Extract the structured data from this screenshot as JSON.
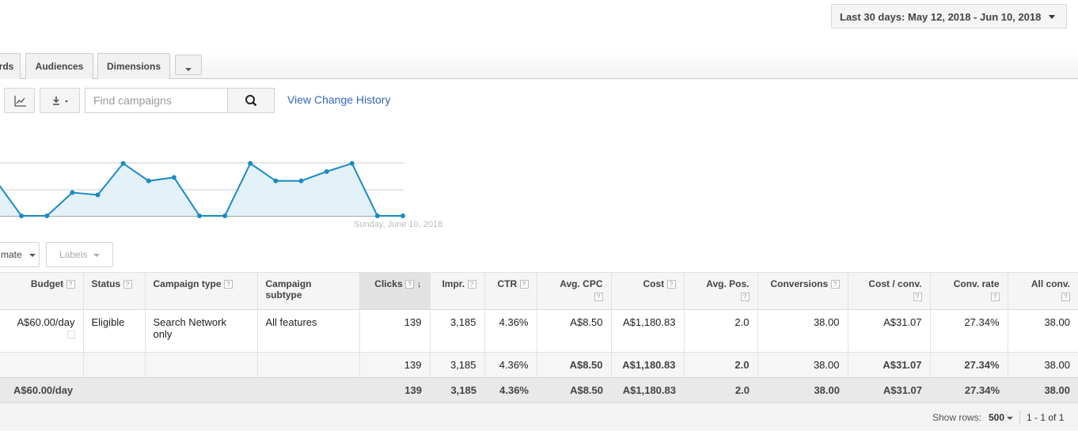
{
  "date_range": {
    "label": "Last 30 days: May 12, 2018 - Jun 10, 2018"
  },
  "tabs": [
    {
      "label": "rds"
    },
    {
      "label": "Audiences"
    },
    {
      "label": "Dimensions"
    }
  ],
  "toolbar": {
    "search_placeholder": "Find campaigns",
    "view_history": "View Change History"
  },
  "chart_data": {
    "type": "area",
    "x_label_last": "Sunday, June 10, 2018",
    "color": "#1a8bc4",
    "fill": "#e3f1f8",
    "values": [
      5,
      2,
      2,
      4,
      3.8,
      6.5,
      5,
      5.3,
      2,
      2,
      6.5,
      5,
      5,
      5.8,
      6.5,
      2,
      2
    ],
    "ylim": [
      2,
      8
    ]
  },
  "filters": {
    "estimate": "mate",
    "labels": "Labels"
  },
  "table": {
    "headers": {
      "budget": "Budget",
      "status": "Status",
      "campaign_type": "Campaign type",
      "campaign_subtype": "Campaign subtype",
      "clicks": "Clicks",
      "impr": "Impr.",
      "ctr": "CTR",
      "avg_cpc": "Avg. CPC",
      "cost": "Cost",
      "avg_pos": "Avg. Pos.",
      "conversions": "Conversions",
      "cost_conv": "Cost / conv.",
      "conv_rate": "Conv. rate",
      "all_conv": "All conv."
    },
    "row": {
      "budget": "A$60.00/day",
      "status": "Eligible",
      "campaign_type": "Search Network only",
      "campaign_subtype": "All features",
      "clicks": "139",
      "impr": "3,185",
      "ctr": "4.36%",
      "avg_cpc": "A$8.50",
      "cost": "A$1,180.83",
      "avg_pos": "2.0",
      "conversions": "38.00",
      "cost_conv": "A$31.07",
      "conv_rate": "27.34%",
      "all_conv": "38.00"
    },
    "subtotal": {
      "clicks": "139",
      "impr": "3,185",
      "ctr": "4.36%",
      "avg_cpc": "A$8.50",
      "cost": "A$1,180.83",
      "avg_pos": "2.0",
      "conversions": "38.00",
      "cost_conv": "A$31.07",
      "conv_rate": "27.34%",
      "all_conv": "38.00"
    },
    "total": {
      "budget": "A$60.00/day",
      "clicks": "139",
      "impr": "3,185",
      "ctr": "4.36%",
      "avg_cpc": "A$8.50",
      "cost": "A$1,180.83",
      "avg_pos": "2.0",
      "conversions": "38.00",
      "cost_conv": "A$31.07",
      "conv_rate": "27.34%",
      "all_conv": "38.00"
    }
  },
  "footer": {
    "show_rows_label": "Show rows:",
    "rows_value": "500",
    "pager": "1 - 1 of 1"
  }
}
